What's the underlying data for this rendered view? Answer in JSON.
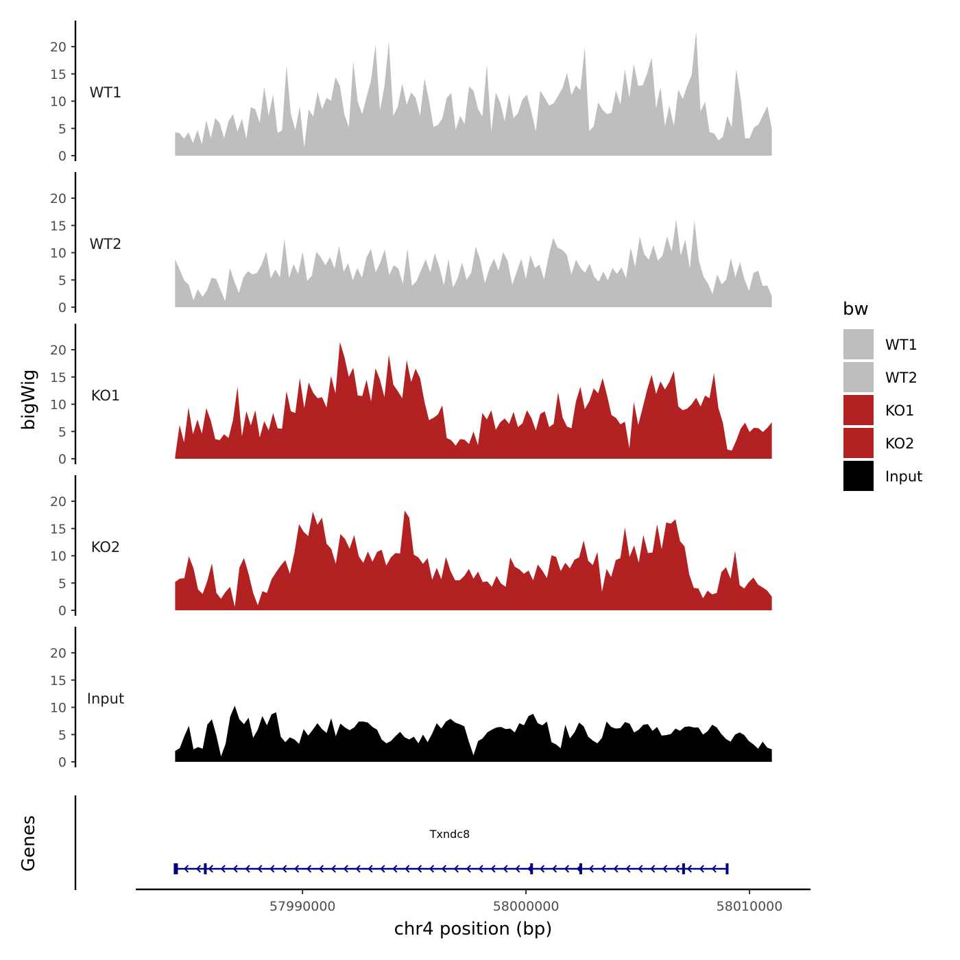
{
  "chart_data": {
    "type": "area",
    "chromosome": "chr4",
    "xlabel": "chr4 position (bp)",
    "ylabel": "bigWig",
    "gene_panel_label": "Genes",
    "xlim": [
      57982600,
      58012700
    ],
    "ylim": [
      0,
      24
    ],
    "x_range": [
      57984300,
      58011000
    ],
    "x_ticks": [
      57990000,
      58000000,
      58010000
    ],
    "x_tick_labels": [
      "57990000",
      "58000000",
      "58010000"
    ],
    "y_ticks": [
      0,
      5,
      10,
      15,
      20
    ],
    "y_tick_labels": [
      "0",
      "5",
      "10",
      "15",
      "20"
    ],
    "legend": {
      "title": "bw",
      "position": "right",
      "entries": [
        {
          "label": "WT1",
          "color": "#bebebe"
        },
        {
          "label": "WT2",
          "color": "#bebebe"
        },
        {
          "label": "KO1",
          "color": "#b22222"
        },
        {
          "label": "KO2",
          "color": "#b22222"
        },
        {
          "label": "Input",
          "color": "#000000"
        }
      ]
    },
    "series": [
      {
        "name": "WT1",
        "color": "#bebebe",
        "values": [
          4.3,
          4.1,
          3.1,
          4.3,
          2.3,
          4.7,
          2.1,
          6.5,
          3.2,
          6.9,
          6.0,
          3.2,
          6.3,
          7.6,
          4.4,
          6.8,
          3.1,
          8.9,
          8.5,
          6.0,
          12.7,
          7.3,
          11.2,
          4.2,
          4.6,
          16.5,
          7.6,
          4.7,
          9.0,
          1.5,
          8.5,
          7.2,
          11.7,
          8.5,
          10.6,
          10.1,
          14.4,
          12.8,
          7.6,
          5.2,
          17.2,
          9.9,
          7.6,
          10.8,
          13.8,
          20.3,
          8.3,
          12.7,
          20.9,
          7.3,
          9.0,
          13.2,
          9.3,
          11.6,
          10.6,
          7.3,
          14.1,
          10.2,
          5.3,
          5.6,
          6.8,
          10.6,
          11.5,
          4.7,
          7.3,
          5.8,
          12.7,
          11.9,
          8.6,
          7.2,
          16.7,
          4.4,
          11.6,
          9.7,
          6.3,
          11.3,
          6.9,
          7.8,
          10.3,
          11.2,
          8.1,
          4.4,
          11.9,
          10.6,
          9.2,
          9.6,
          11.0,
          12.4,
          15.2,
          11.1,
          12.9,
          12.0,
          19.9,
          4.5,
          5.4,
          9.8,
          8.4,
          7.6,
          7.9,
          11.9,
          9.4,
          15.8,
          10.7,
          16.8,
          12.8,
          12.9,
          15.1,
          18.0,
          8.7,
          12.6,
          5.4,
          9.2,
          5.4,
          12.1,
          10.4,
          12.8,
          14.8,
          22.8,
          8.1,
          9.9,
          4.3,
          4.1,
          2.8,
          3.5,
          7.3,
          5.2,
          15.9,
          10.7,
          3.2,
          3.2,
          5.2,
          5.7,
          7.4,
          9.1,
          4.9
        ]
      },
      {
        "name": "WT2",
        "color": "#bebebe",
        "values": [
          8.8,
          6.9,
          4.9,
          4.1,
          1.3,
          3.3,
          1.9,
          3.1,
          5.4,
          5.2,
          3.1,
          1.1,
          7.2,
          4.7,
          2.6,
          5.5,
          6.6,
          6.0,
          6.3,
          7.8,
          10.2,
          5.3,
          6.9,
          5.5,
          12.6,
          5.4,
          7.9,
          6.1,
          10.2,
          4.8,
          5.8,
          10.2,
          9.1,
          7.7,
          9.2,
          7.1,
          11.3,
          6.5,
          8.1,
          4.9,
          7.2,
          5.4,
          9.1,
          10.7,
          6.4,
          8.1,
          10.6,
          5.9,
          7.7,
          7.1,
          4.3,
          10.7,
          3.9,
          4.8,
          6.8,
          8.8,
          6.4,
          9.9,
          7.4,
          4.0,
          8.8,
          3.6,
          5.3,
          8.2,
          5.0,
          6.3,
          11.1,
          8.6,
          4.4,
          7.1,
          8.9,
          6.7,
          10.1,
          8.5,
          4.1,
          6.5,
          8.9,
          5.2,
          9.5,
          7.2,
          7.8,
          5.1,
          9.4,
          12.7,
          10.9,
          10.5,
          9.6,
          6.0,
          8.7,
          7.2,
          6.3,
          8.0,
          5.6,
          4.7,
          6.5,
          4.9,
          7.2,
          6.1,
          7.3,
          5.3,
          10.9,
          7.4,
          12.9,
          9.7,
          8.7,
          11.4,
          8.5,
          9.5,
          13.0,
          10.2,
          16.1,
          9.5,
          12.4,
          7.1,
          15.9,
          8.5,
          5.6,
          4.3,
          2.4,
          6.0,
          4.2,
          5.1,
          9.0,
          5.5,
          8.3,
          5.1,
          3.0,
          6.3,
          6.7,
          3.9,
          4.0,
          2.0
        ]
      },
      {
        "name": "KO1",
        "color": "#b22222",
        "values": [
          0.4,
          6.2,
          3.0,
          9.4,
          4.5,
          7.2,
          4.6,
          9.3,
          7.0,
          3.6,
          3.4,
          4.5,
          3.8,
          7.1,
          13.2,
          4.1,
          8.7,
          6.1,
          8.9,
          3.9,
          6.9,
          5.2,
          8.4,
          5.6,
          5.5,
          12.4,
          8.7,
          8.4,
          14.8,
          9.3,
          14.0,
          12.1,
          11.1,
          11.3,
          9.4,
          15.2,
          12.0,
          21.4,
          18.7,
          15.0,
          16.7,
          11.6,
          11.5,
          14.5,
          10.5,
          16.6,
          14.5,
          11.3,
          19.1,
          13.6,
          12.4,
          11.1,
          18.1,
          14.1,
          16.5,
          14.8,
          10.4,
          7.1,
          7.5,
          8.1,
          9.8,
          3.8,
          3.4,
          2.4,
          3.6,
          3.5,
          2.7,
          5.0,
          2.5,
          8.4,
          7.2,
          8.9,
          5.3,
          6.7,
          7.4,
          6.4,
          8.6,
          5.8,
          6.5,
          8.9,
          7.5,
          5.2,
          8.2,
          8.7,
          5.8,
          6.4,
          12.2,
          7.6,
          5.9,
          5.6,
          10.5,
          13.2,
          9.1,
          10.5,
          12.9,
          12.0,
          14.8,
          11.6,
          8.0,
          7.5,
          6.3,
          6.8,
          1.9,
          10.4,
          6.2,
          9.4,
          12.7,
          15.4,
          11.9,
          14.2,
          12.7,
          14.1,
          16.1,
          9.6,
          8.9,
          9.2,
          10.0,
          11.2,
          9.6,
          11.6,
          11.1,
          15.7,
          9.3,
          6.6,
          1.7,
          1.5,
          3.3,
          5.5,
          6.6,
          4.9,
          5.7,
          5.6,
          4.9,
          5.7,
          6.7
        ]
      },
      {
        "name": "KO2",
        "color": "#b22222",
        "values": [
          5.2,
          5.8,
          5.9,
          9.9,
          7.7,
          3.8,
          3.0,
          5.4,
          8.6,
          3.2,
          2.1,
          3.4,
          4.3,
          0.6,
          7.8,
          9.6,
          6.7,
          3.2,
          0.9,
          3.5,
          3.2,
          5.7,
          7.0,
          8.2,
          9.2,
          6.7,
          10.6,
          15.8,
          14.4,
          13.6,
          18.1,
          15.7,
          17.0,
          12.2,
          11.3,
          8.5,
          14.0,
          13.1,
          11.3,
          13.8,
          9.9,
          8.7,
          10.8,
          8.9,
          10.7,
          11.1,
          8.2,
          9.7,
          10.5,
          10.4,
          18.3,
          17.0,
          10.2,
          9.7,
          8.5,
          9.6,
          5.6,
          7.8,
          5.7,
          9.8,
          7.2,
          5.5,
          5.5,
          6.3,
          7.6,
          5.8,
          7.1,
          5.2,
          5.3,
          4.3,
          6.3,
          4.9,
          4.3,
          9.7,
          8.0,
          7.5,
          6.7,
          7.3,
          5.5,
          8.4,
          7.3,
          5.9,
          10.1,
          9.8,
          7.2,
          8.7,
          7.7,
          9.3,
          9.7,
          12.8,
          9.1,
          8.3,
          10.7,
          3.4,
          7.6,
          6.1,
          9.2,
          9.6,
          15.2,
          9.8,
          11.9,
          8.7,
          13.8,
          10.5,
          10.6,
          15.8,
          11.2,
          16.1,
          15.9,
          16.7,
          12.7,
          11.7,
          6.6,
          4.1,
          4.0,
          2.2,
          3.6,
          2.9,
          3.2,
          7.0,
          7.9,
          5.8,
          10.9,
          4.6,
          4.0,
          5.2,
          6.0,
          4.7,
          4.2,
          3.6,
          2.5
        ]
      },
      {
        "name": "Input",
        "color": "#000000",
        "values": [
          2.0,
          2.5,
          4.7,
          6.6,
          2.3,
          2.7,
          2.4,
          6.8,
          7.8,
          4.8,
          1.0,
          3.3,
          8.3,
          10.3,
          7.8,
          6.9,
          8.1,
          4.4,
          5.9,
          8.4,
          6.7,
          8.7,
          9.1,
          4.6,
          3.6,
          4.5,
          4.1,
          3.3,
          6.0,
          4.8,
          5.9,
          7.1,
          6.0,
          5.3,
          8.0,
          4.7,
          7.0,
          6.3,
          5.8,
          6.3,
          7.4,
          7.4,
          7.2,
          6.4,
          5.9,
          4.1,
          3.4,
          3.8,
          4.7,
          5.5,
          4.5,
          4.1,
          4.6,
          3.4,
          5.0,
          3.6,
          5.2,
          7.1,
          6.1,
          7.4,
          7.9,
          7.2,
          6.9,
          6.5,
          3.7,
          1.2,
          3.8,
          4.3,
          5.4,
          5.9,
          6.3,
          6.4,
          6.0,
          6.1,
          5.4,
          7.1,
          6.7,
          8.4,
          8.8,
          7.1,
          6.7,
          7.4,
          3.6,
          3.2,
          2.5,
          6.8,
          4.3,
          5.4,
          7.2,
          6.5,
          4.6,
          3.9,
          3.4,
          4.4,
          7.4,
          6.4,
          6.1,
          6.2,
          7.3,
          7.0,
          5.4,
          5.9,
          6.8,
          6.9,
          5.7,
          6.4,
          4.8,
          4.9,
          5.1,
          6.1,
          5.7,
          6.4,
          6.5,
          6.3,
          6.3,
          5.0,
          5.6,
          6.8,
          6.3,
          5.1,
          4.2,
          3.7,
          5.0,
          5.4,
          4.9,
          3.8,
          3.2,
          2.4,
          3.7,
          2.6,
          2.3
        ]
      }
    ],
    "gene": {
      "name": "Txndc8",
      "strand": "-",
      "start": 57984300,
      "end": 58009000,
      "exons": [
        57984300,
        57985650,
        58000250,
        58002450,
        58007050,
        58009000
      ]
    }
  }
}
